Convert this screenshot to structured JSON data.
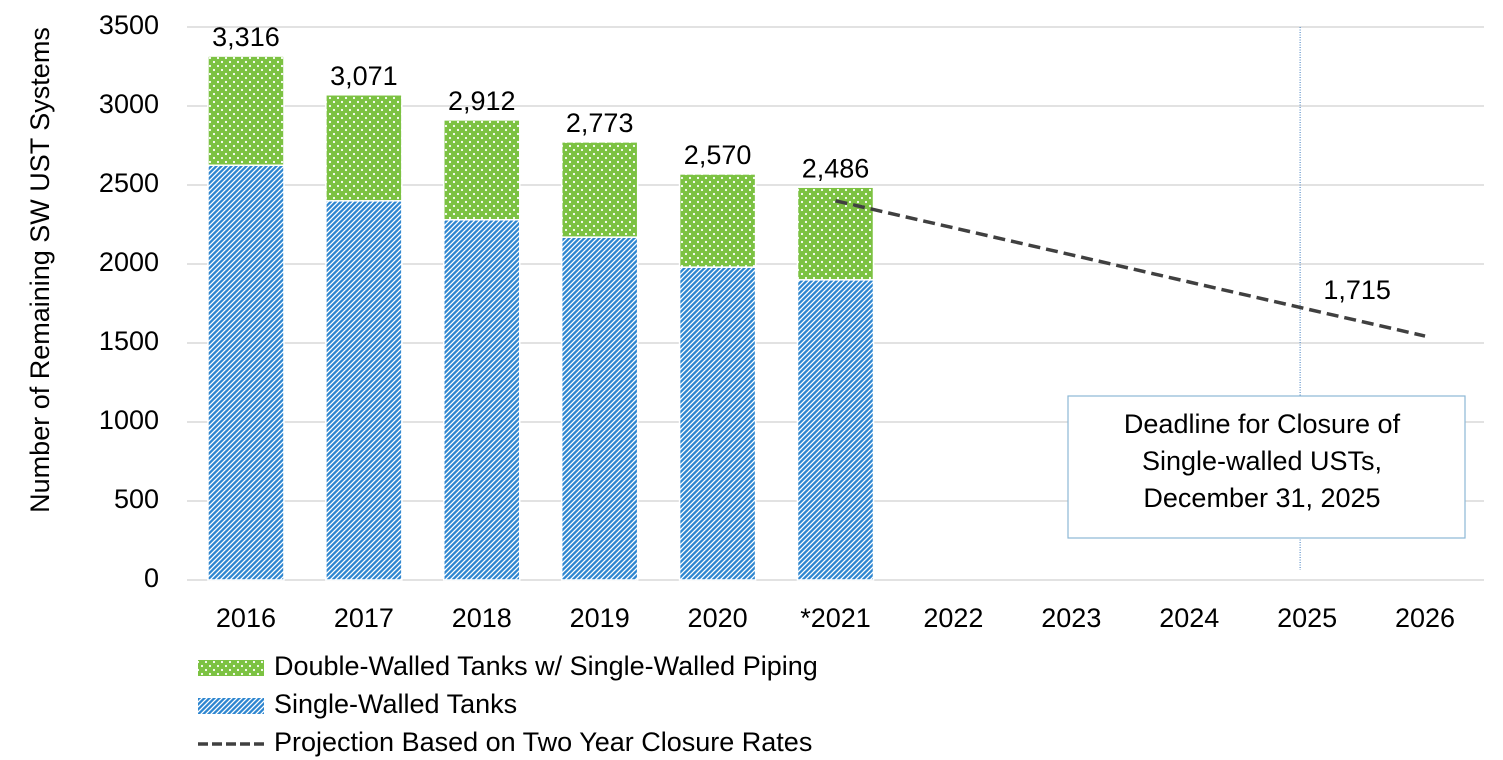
{
  "chart_data": {
    "type": "stacked_bar",
    "y_label": "Number of Remaining SW UST Systems",
    "categories": [
      "2016",
      "2017",
      "2018",
      "2019",
      "2020",
      "*2021",
      "2022",
      "2023",
      "2024",
      "2025",
      "2026"
    ],
    "series": [
      {
        "name": "Double-Walled Tanks w/ Single-Walled Piping",
        "color": "#7cc242",
        "pattern": "dots",
        "values": [
          691,
          671,
          632,
          603,
          590,
          586,
          null,
          null,
          null,
          null,
          null
        ]
      },
      {
        "name": "Single-Walled Tanks",
        "color": "#2e86d0",
        "pattern": "stripes",
        "values": [
          2625,
          2400,
          2280,
          2170,
          1980,
          1900,
          null,
          null,
          null,
          null,
          null
        ]
      },
      {
        "name": "Projection Based on Two Year Closure Rates",
        "color": "#404040",
        "kind": "dashed_line",
        "values": [
          null,
          null,
          null,
          null,
          null,
          2400,
          2229,
          2058,
          1886,
          1715,
          1544
        ],
        "value_labels": [
          null,
          null,
          null,
          null,
          null,
          null,
          null,
          null,
          null,
          "1,715",
          null
        ]
      }
    ],
    "totals": [
      3316,
      3071,
      2912,
      2773,
      2570,
      2486
    ],
    "total_labels": [
      "3,316",
      "3,071",
      "2,912",
      "2,773",
      "2,570",
      "2,486"
    ],
    "annotation": {
      "lines": [
        "Deadline for Closure of",
        "Single-walled USTs,",
        "December 31, 2025"
      ],
      "category": "2025"
    },
    "ylim": [
      0,
      3500
    ],
    "yticks": [
      0,
      500,
      1000,
      1500,
      2000,
      2500,
      3000,
      3500
    ],
    "grid": true
  }
}
